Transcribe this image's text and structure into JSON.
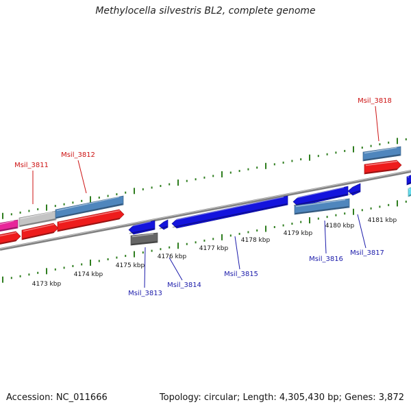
{
  "title": "Methylocella silvestris BL2, complete genome",
  "footer": {
    "accession": "Accession: NC_011666",
    "topology": "Topology: circular; Length: 4,305,430 bp; Genes: 3,872"
  },
  "colors": {
    "backbone": "#808080",
    "tick": "#2e7d1e",
    "kbp_text": "#111111",
    "forward_label": "#cc1111",
    "reverse_label": "#1a1aaa"
  },
  "scale_labels": [
    {
      "text": "4173 kbp",
      "kbp": 4173
    },
    {
      "text": "4174 kbp",
      "kbp": 4174
    },
    {
      "text": "4175 kbp",
      "kbp": 4175
    },
    {
      "text": "4176 kbp",
      "kbp": 4176
    },
    {
      "text": "4177 kbp",
      "kbp": 4177
    },
    {
      "text": "4178 kbp",
      "kbp": 4178
    },
    {
      "text": "4179 kbp",
      "kbp": 4179
    },
    {
      "text": "4180 kbp",
      "kbp": 4180
    },
    {
      "text": "4181 kbp",
      "kbp": 4181
    }
  ],
  "gene_labels": [
    {
      "text": "Msil_3811",
      "strand": "forward"
    },
    {
      "text": "Msil_3812",
      "strand": "forward"
    },
    {
      "text": "Msil_3818",
      "strand": "forward"
    },
    {
      "text": "Msil_3813",
      "strand": "reverse"
    },
    {
      "text": "Msil_3814",
      "strand": "reverse"
    },
    {
      "text": "Msil_3815",
      "strand": "reverse"
    },
    {
      "text": "Msil_3816",
      "strand": "reverse"
    },
    {
      "text": "Msil_3817",
      "strand": "reverse"
    }
  ],
  "features": [
    {
      "name": "pink-feature",
      "color": "#e8259a"
    },
    {
      "name": "gray-feature",
      "color": "#c4c4c4"
    },
    {
      "name": "steelblue-feature",
      "color": "#4f86bd"
    },
    {
      "name": "red-feature",
      "color": "#ee1c1c"
    },
    {
      "name": "blue-feature",
      "color": "#1414dd"
    },
    {
      "name": "darkgray-feature",
      "color": "#666666"
    },
    {
      "name": "cyan-feature",
      "color": "#66ddee"
    }
  ]
}
